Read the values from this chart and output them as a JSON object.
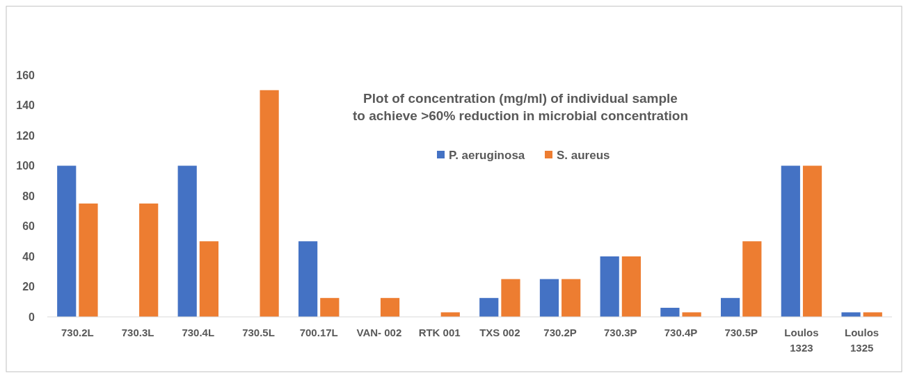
{
  "chart_data": {
    "type": "bar",
    "title": "Plot of concentration (mg/ml) of individual sample\nto achieve >60% reduction in microbial concentration",
    "categories": [
      "730.2L",
      "730.3L",
      "730.4L",
      "730.5L",
      "700.17L",
      "VAN- 002",
      "RTK 001",
      "TXS 002",
      "730.2P",
      "730.3P",
      "730.4P",
      "730.5P",
      "Loulos 1323",
      "Loulos 1325"
    ],
    "series": [
      {
        "name": "P. aeruginosa",
        "color": "#4472c4",
        "values": [
          100,
          null,
          100,
          null,
          50,
          null,
          null,
          12.5,
          25,
          40,
          6,
          12.5,
          100,
          3
        ]
      },
      {
        "name": "S. aureus",
        "color": "#ed7d31",
        "values": [
          75,
          75,
          50,
          150,
          12.5,
          12.5,
          3,
          25,
          25,
          40,
          3,
          50,
          100,
          3
        ]
      }
    ],
    "ylim": [
      0,
      160
    ],
    "yticks": [
      0,
      20,
      40,
      60,
      80,
      100,
      120,
      140,
      160
    ],
    "grid": false,
    "legend": "top"
  }
}
